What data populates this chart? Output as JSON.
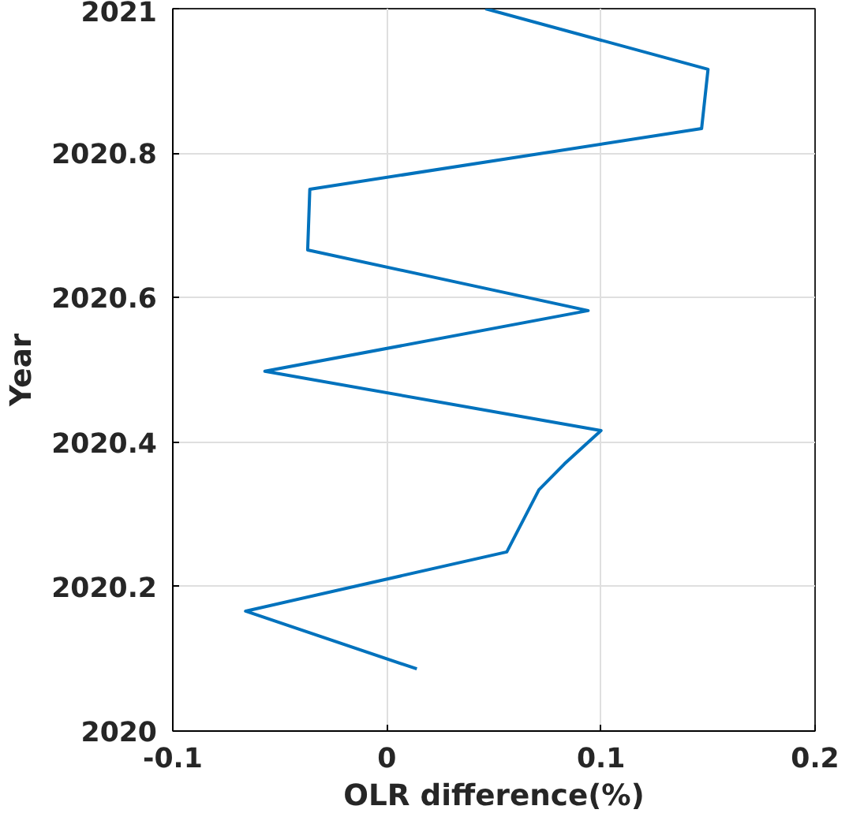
{
  "chart_data": {
    "type": "line",
    "xlabel": "OLR difference(%)",
    "ylabel": "Year",
    "series": [
      {
        "color": "#0072bd",
        "x": [
          0.014,
          -0.066,
          0.056,
          0.071,
          0.083,
          0.1,
          -0.057,
          0.094,
          -0.037,
          -0.036,
          0.147,
          0.15,
          0.046
        ],
        "values": [
          2020.086,
          2020.166,
          2020.248,
          2020.334,
          2020.37,
          2020.416,
          2020.498,
          2020.582,
          2020.666,
          2020.75,
          2020.834,
          2020.916,
          2021.0
        ]
      }
    ],
    "xlim": [
      -0.1,
      0.2
    ],
    "xticks": [
      -0.1,
      0,
      0.1,
      0.2
    ],
    "ylim": [
      2020,
      2021
    ],
    "yticks": [
      2020,
      2020.2,
      2020.4,
      2020.6,
      2020.8,
      2021
    ],
    "grid": true,
    "line_style": "solid",
    "marker": "none"
  }
}
